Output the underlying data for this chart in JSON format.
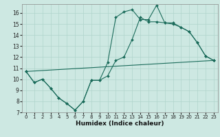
{
  "xlabel": "Humidex (Indice chaleur)",
  "background_color": "#cde8e2",
  "grid_color": "#b0d4cc",
  "line_color": "#1a6b5a",
  "xlim_min": -0.5,
  "xlim_max": 23.5,
  "ylim_min": 7,
  "ylim_max": 16.8,
  "xticks": [
    0,
    1,
    2,
    3,
    4,
    5,
    6,
    7,
    8,
    9,
    10,
    11,
    12,
    13,
    14,
    15,
    16,
    17,
    18,
    19,
    20,
    21,
    22,
    23
  ],
  "yticks": [
    7,
    8,
    9,
    10,
    11,
    12,
    13,
    14,
    15,
    16
  ],
  "line1_x": [
    0,
    1,
    2,
    3,
    4,
    5,
    6,
    7,
    8,
    9,
    10,
    11,
    12,
    13,
    14,
    15,
    16,
    17,
    18,
    19,
    20,
    21,
    22,
    23
  ],
  "line1_y": [
    10.7,
    9.7,
    10.0,
    9.2,
    8.3,
    7.8,
    7.2,
    8.0,
    9.9,
    9.9,
    11.5,
    15.6,
    16.1,
    16.3,
    15.4,
    15.4,
    16.7,
    15.1,
    15.0,
    14.7,
    14.3,
    13.3,
    12.1,
    11.7
  ],
  "line2_x": [
    0,
    1,
    2,
    3,
    4,
    5,
    6,
    7,
    8,
    9,
    10,
    11,
    12,
    13,
    14,
    15,
    16,
    17,
    18,
    19,
    20,
    21,
    22,
    23
  ],
  "line2_y": [
    10.7,
    9.7,
    10.0,
    9.2,
    8.3,
    7.8,
    7.2,
    8.0,
    9.9,
    9.9,
    10.3,
    11.7,
    12.0,
    13.6,
    15.6,
    15.2,
    15.2,
    15.1,
    15.1,
    14.7,
    14.3,
    13.3,
    12.1,
    11.7
  ],
  "line3_x": [
    0,
    23
  ],
  "line3_y": [
    10.7,
    11.7
  ],
  "tick_fontsize": 5.5,
  "xlabel_fontsize": 6.5
}
